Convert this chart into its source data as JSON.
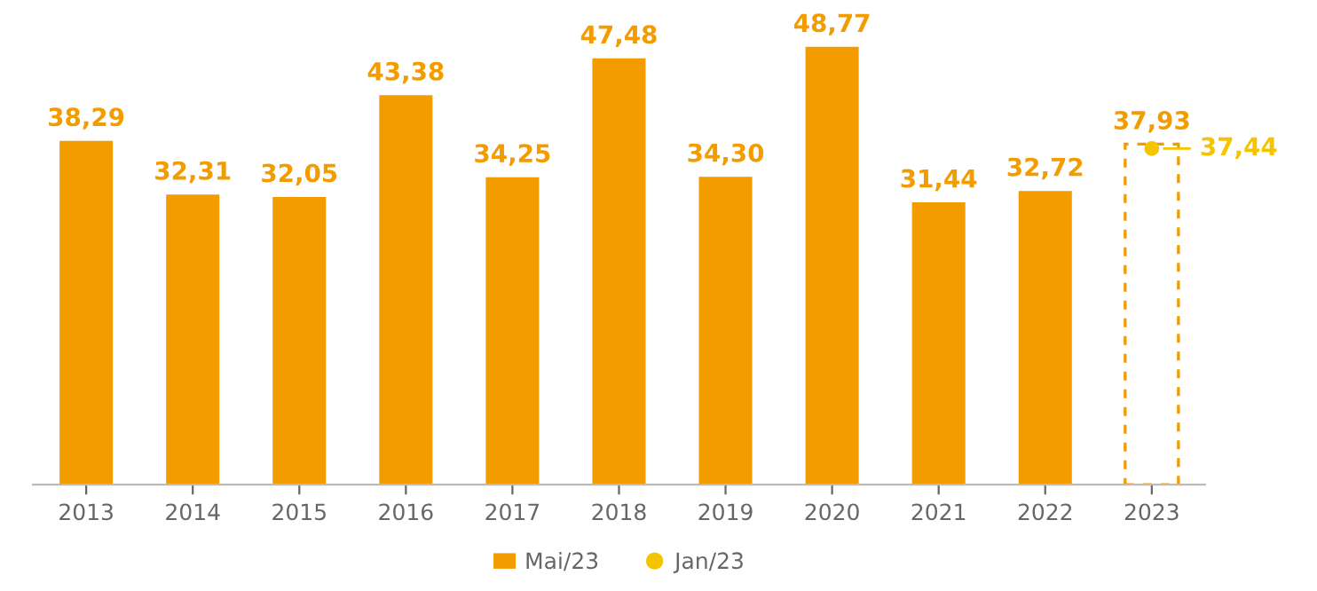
{
  "chart_data": {
    "type": "bar",
    "categories": [
      "2013",
      "2014",
      "2015",
      "2016",
      "2017",
      "2018",
      "2019",
      "2020",
      "2021",
      "2022",
      "2023"
    ],
    "series": [
      {
        "name": "Mai/23",
        "color": "#f39c00",
        "values": [
          38.29,
          32.31,
          32.05,
          43.38,
          34.25,
          47.48,
          34.3,
          48.77,
          31.44,
          32.72,
          null
        ],
        "value_labels": [
          "38,29",
          "32,31",
          "32,05",
          "43,38",
          "34,25",
          "47,48",
          "34,30",
          "48,77",
          "31,44",
          "32,72",
          null
        ]
      },
      {
        "line_style": "dashed",
        "color": "#f39c00",
        "values": [
          null,
          null,
          null,
          null,
          null,
          null,
          null,
          null,
          null,
          null,
          37.93
        ],
        "value_labels": [
          null,
          null,
          null,
          null,
          null,
          null,
          null,
          null,
          null,
          null,
          "37,93"
        ]
      },
      {
        "name": "Jan/23",
        "type": "scatter",
        "marker": "circle",
        "color": "#f5c400",
        "values": [
          null,
          null,
          null,
          null,
          null,
          null,
          null,
          null,
          null,
          null,
          37.44
        ],
        "value_labels": [
          null,
          null,
          null,
          null,
          null,
          null,
          null,
          null,
          null,
          null,
          "37,44"
        ]
      }
    ],
    "legend": "bottom",
    "grid": false
  }
}
